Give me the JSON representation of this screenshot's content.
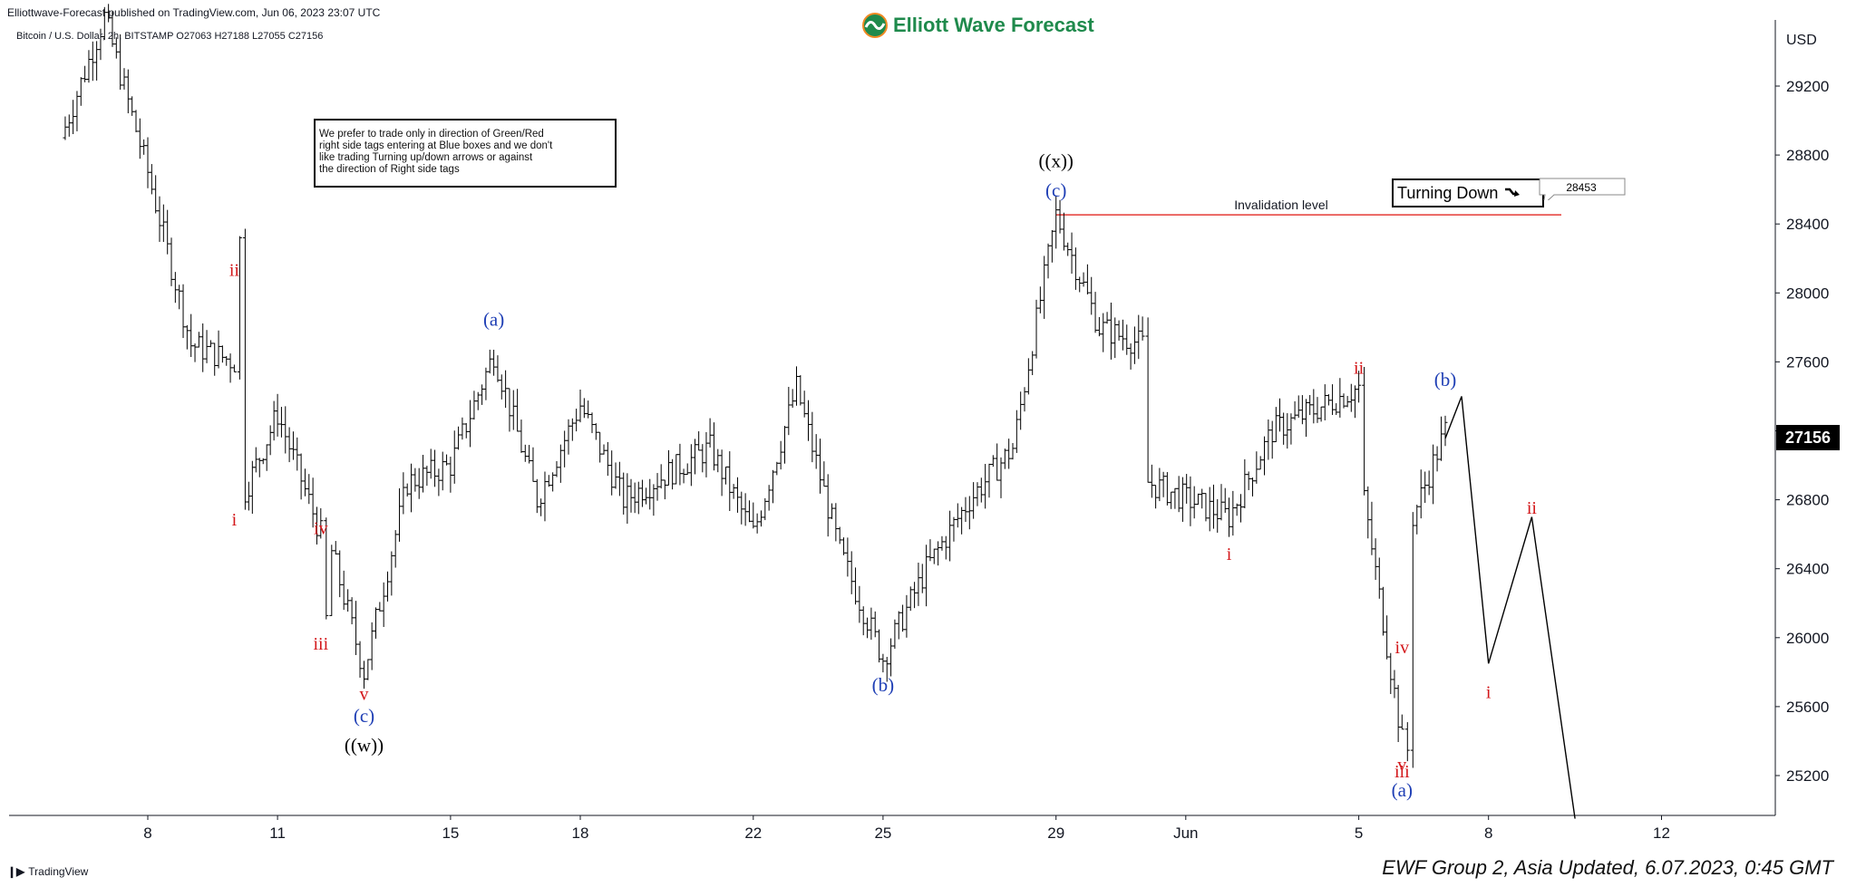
{
  "header": {
    "published": "Elliottwave-Forecast published on TradingView.com, Jun 06, 2023 23:07 UTC",
    "brand": "Elliott Wave Forecast",
    "legend": "Bitcoin / U.S. Dollar, 2h, BITSTAMP  O27063  H27188  L27055  C27156",
    "currency": "USD"
  },
  "footer": {
    "tradingview": "TradingView",
    "update": "EWF Group 2, Asia Updated, 6.07.2023, 0:45 GMT"
  },
  "note_box": {
    "lines": [
      "We prefer to trade only in direction of Green/Red",
      "right side tags entering at Blue boxes and we don't",
      "like trading Turning up/down arrows or against",
      "the direction of Right side tags"
    ]
  },
  "turning_tag": {
    "label": "Turning Down",
    "icon": "arrow-down-right-icon"
  },
  "invalidation": {
    "label": "Invalidation level",
    "value": "28453",
    "price": 28453
  },
  "current_price": {
    "label": "27156",
    "value": 27156
  },
  "colors": {
    "wave_blue": "#1f3fb5",
    "wave_red": "#d3171a",
    "wave_black": "#000000",
    "invalidation_line": "#e53935",
    "brand_green": "#1f8a4c"
  },
  "chart_data": {
    "type": "line",
    "style": "ohlc-bars",
    "title": "Bitcoin / U.S. Dollar, 2h, BITSTAMP",
    "ylim": [
      24900,
      29800
    ],
    "y_ticks": [
      25200,
      25600,
      26000,
      26400,
      26800,
      27200,
      27600,
      28000,
      28400,
      28800,
      29200
    ],
    "x_ticks": [
      "8",
      "11",
      "15",
      "18",
      "22",
      "25",
      "29",
      "Jun",
      "5",
      "8",
      "12"
    ],
    "grid": false,
    "price_path": [
      {
        "x": "May 6",
        "y": 28900
      },
      {
        "x": "May 7",
        "y": 29600
      },
      {
        "x": "May 8",
        "y": 28700
      },
      {
        "x": "May 9",
        "y": 27700
      },
      {
        "x": "May 10",
        "y": 27600
      },
      {
        "x": "May 10",
        "y": 28300
      },
      {
        "x": "May 10",
        "y": 26850
      },
      {
        "x": "May 11",
        "y": 27300
      },
      {
        "x": "May 12",
        "y": 26600
      },
      {
        "x": "May 12",
        "y": 26100
      },
      {
        "x": "May 12",
        "y": 26500
      },
      {
        "x": "May 13",
        "y": 25800
      },
      {
        "x": "May 14",
        "y": 26900
      },
      {
        "x": "May 15",
        "y": 27000
      },
      {
        "x": "May 16",
        "y": 27650
      },
      {
        "x": "May 17",
        "y": 26800
      },
      {
        "x": "May 18",
        "y": 27350
      },
      {
        "x": "May 19",
        "y": 26800
      },
      {
        "x": "May 21",
        "y": 27100
      },
      {
        "x": "May 22",
        "y": 26600
      },
      {
        "x": "May 23",
        "y": 27450
      },
      {
        "x": "May 24",
        "y": 26500
      },
      {
        "x": "May 25",
        "y": 25880
      },
      {
        "x": "May 26",
        "y": 26400
      },
      {
        "x": "May 27",
        "y": 26800
      },
      {
        "x": "May 28",
        "y": 27100
      },
      {
        "x": "May 29",
        "y": 28453
      },
      {
        "x": "May 30",
        "y": 27800
      },
      {
        "x": "May 31",
        "y": 27700
      },
      {
        "x": "May 31",
        "y": 26900
      },
      {
        "x": "Jun 2",
        "y": 26700
      },
      {
        "x": "Jun 3",
        "y": 27200
      },
      {
        "x": "Jun 5",
        "y": 27450
      },
      {
        "x": "Jun 5",
        "y": 26800
      },
      {
        "x": "Jun 6",
        "y": 25400
      },
      {
        "x": "Jun 6",
        "y": 25350
      },
      {
        "x": "Jun 6",
        "y": 26700
      },
      {
        "x": "Jun 7",
        "y": 27200
      }
    ],
    "projection": [
      {
        "x": "Jun 7",
        "y": 27156
      },
      {
        "x": "Jun 7",
        "y": 27400
      },
      {
        "x": "Jun 8",
        "y": 25850
      },
      {
        "x": "Jun 9",
        "y": 26700
      },
      {
        "x": "Jun 10",
        "y": 24950
      }
    ],
    "wave_labels": [
      {
        "text": "ii",
        "color": "red",
        "x": "May 10",
        "y": 28100
      },
      {
        "text": "i",
        "color": "red",
        "x": "May 10",
        "y": 26650
      },
      {
        "text": "iv",
        "color": "red",
        "x": "May 12",
        "y": 26600
      },
      {
        "text": "iii",
        "color": "red",
        "x": "May 12",
        "y": 25930
      },
      {
        "text": "v",
        "color": "red",
        "x": "May 13",
        "y": 25640
      },
      {
        "text": "(c)",
        "color": "blue",
        "x": "May 13",
        "y": 25510
      },
      {
        "text": "((w))",
        "color": "black",
        "x": "May 13",
        "y": 25340
      },
      {
        "text": "(a)",
        "color": "blue",
        "x": "May 16",
        "y": 27810
      },
      {
        "text": "(b)",
        "color": "blue",
        "x": "May 25",
        "y": 25690
      },
      {
        "text": "((x))",
        "color": "black",
        "x": "May 29",
        "y": 28730
      },
      {
        "text": "(c)",
        "color": "blue",
        "x": "May 29",
        "y": 28560
      },
      {
        "text": "i",
        "color": "red",
        "x": "Jun 2",
        "y": 26450
      },
      {
        "text": "ii",
        "color": "red",
        "x": "Jun 5",
        "y": 27530
      },
      {
        "text": "iv",
        "color": "red",
        "x": "Jun 6",
        "y": 25910
      },
      {
        "text": "iii",
        "color": "red",
        "x": "Jun 6",
        "y": 25190
      },
      {
        "text": "v",
        "color": "red",
        "x": "Jun 6",
        "y": 25230
      },
      {
        "text": "(a)",
        "color": "blue",
        "x": "Jun 6",
        "y": 25080
      },
      {
        "text": "(b)",
        "color": "blue",
        "x": "Jun 7",
        "y": 27460
      },
      {
        "text": "i",
        "color": "red",
        "x": "Jun 8",
        "y": 25650
      },
      {
        "text": "ii",
        "color": "red",
        "x": "Jun 9",
        "y": 26720
      }
    ]
  }
}
